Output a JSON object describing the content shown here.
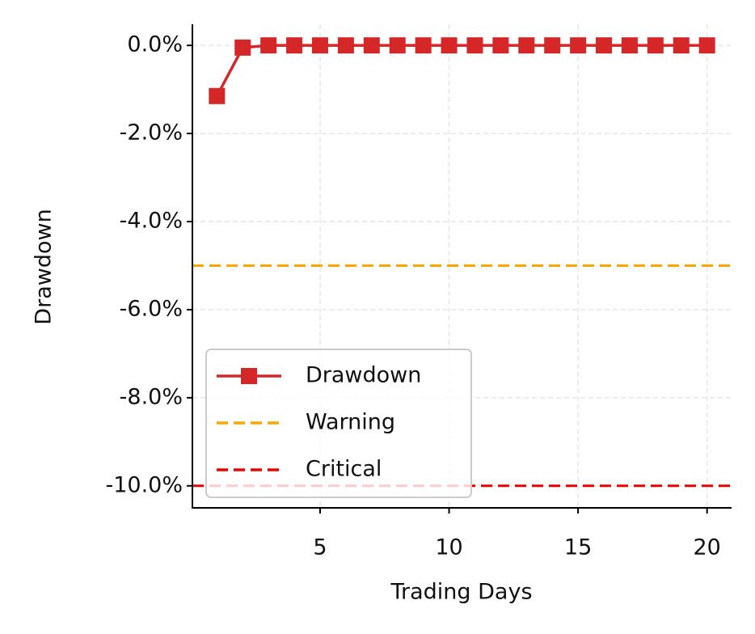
{
  "chart_data": {
    "type": "line",
    "x_label": "Trading Days",
    "y_label": "Drawdown",
    "x": [
      1,
      2,
      3,
      4,
      5,
      6,
      7,
      8,
      9,
      10,
      11,
      12,
      13,
      14,
      15,
      16,
      17,
      18,
      19,
      20
    ],
    "series": [
      {
        "name": "Drawdown",
        "color": "#d62728",
        "marker": "square",
        "values": [
          -1.15,
          -0.05,
          0,
          0,
          0,
          0,
          0,
          0,
          0,
          0,
          0,
          0,
          0,
          0,
          0,
          0,
          0,
          0,
          0,
          0
        ]
      }
    ],
    "reference_lines": [
      {
        "name": "Warning",
        "value": -5,
        "color": "#ffa500"
      },
      {
        "name": "Critical",
        "value": -10,
        "color": "#ee0000"
      }
    ],
    "xlim": [
      0.05,
      20.95
    ],
    "xticks": [
      5,
      10,
      15,
      20
    ],
    "ylim": [
      -10.5,
      0.48
    ],
    "yticks": [
      {
        "value": 0,
        "label": "0.0%"
      },
      {
        "value": -2,
        "label": "-2.0%"
      },
      {
        "value": -4,
        "label": "-4.0%"
      },
      {
        "value": -6,
        "label": "-6.0%"
      },
      {
        "value": -8,
        "label": "-8.0%"
      },
      {
        "value": -10,
        "label": "-10.0%"
      }
    ],
    "grid": true,
    "legend": "lower left"
  }
}
